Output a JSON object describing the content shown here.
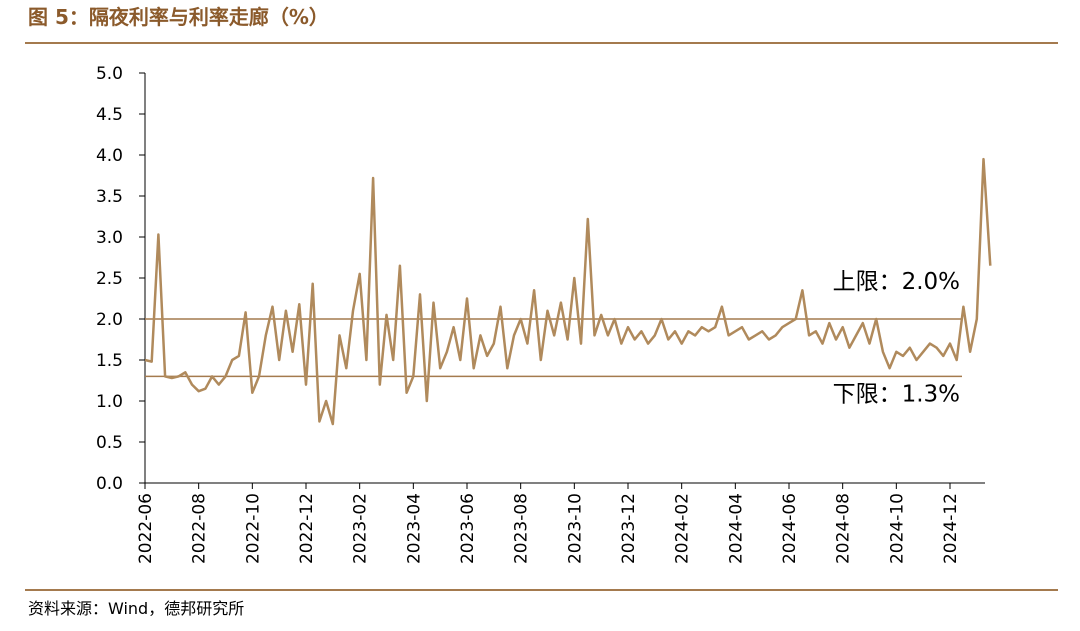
{
  "chart_data": {
    "type": "line",
    "title": "图 5：隔夜利率与利率走廊（%）",
    "source": "资料来源：Wind，德邦研究所",
    "color": "#b08a5c",
    "categories": [
      "2022-06",
      null,
      null,
      null,
      null,
      null,
      null,
      null,
      "2022-08",
      null,
      null,
      null,
      null,
      null,
      null,
      null,
      "2022-10",
      null,
      null,
      null,
      null,
      null,
      null,
      null,
      "2022-12",
      null,
      null,
      null,
      null,
      null,
      null,
      null,
      "2023-02",
      null,
      null,
      null,
      null,
      null,
      null,
      null,
      "2023-04",
      null,
      null,
      null,
      null,
      null,
      null,
      null,
      "2023-06",
      null,
      null,
      null,
      null,
      null,
      null,
      null,
      "2023-08",
      null,
      null,
      null,
      null,
      null,
      null,
      null,
      "2023-10",
      null,
      null,
      null,
      null,
      null,
      null,
      null,
      "2023-12",
      null,
      null,
      null,
      null,
      null,
      null,
      null,
      "2024-02",
      null,
      null,
      null,
      null,
      null,
      null,
      null,
      "2024-04",
      null,
      null,
      null,
      null,
      null,
      null,
      null,
      "2024-06",
      null,
      null,
      null,
      null,
      null,
      null,
      null,
      "2024-08",
      null,
      null,
      null,
      null,
      null,
      null,
      null,
      "2024-10",
      null,
      null,
      null,
      null,
      null,
      null,
      null,
      "2024-12",
      null,
      null,
      null,
      null,
      null,
      null
    ],
    "values": [
      1.5,
      1.48,
      3.03,
      1.3,
      1.28,
      1.3,
      1.35,
      1.2,
      1.12,
      1.15,
      1.3,
      1.2,
      1.3,
      1.5,
      1.55,
      2.08,
      1.1,
      1.3,
      1.8,
      2.15,
      1.5,
      2.1,
      1.6,
      2.18,
      1.2,
      2.43,
      0.75,
      1.0,
      0.72,
      1.8,
      1.4,
      2.1,
      2.55,
      1.5,
      3.72,
      1.2,
      2.05,
      1.5,
      2.65,
      1.1,
      1.3,
      2.3,
      1.0,
      2.2,
      1.4,
      1.6,
      1.9,
      1.5,
      2.25,
      1.4,
      1.8,
      1.55,
      1.7,
      2.15,
      1.4,
      1.8,
      2.0,
      1.7,
      2.35,
      1.5,
      2.1,
      1.8,
      2.2,
      1.75,
      2.5,
      1.7,
      3.22,
      1.8,
      2.05,
      1.8,
      2.0,
      1.7,
      1.9,
      1.75,
      1.85,
      1.7,
      1.8,
      2.0,
      1.75,
      1.85,
      1.7,
      1.85,
      1.8,
      1.9,
      1.85,
      1.9,
      2.15,
      1.8,
      1.85,
      1.9,
      1.75,
      1.8,
      1.85,
      1.75,
      1.8,
      1.9,
      1.95,
      2.0,
      2.35,
      1.8,
      1.85,
      1.7,
      1.95,
      1.75,
      1.9,
      1.65,
      1.8,
      1.95,
      1.7,
      2.0,
      1.6,
      1.4,
      1.6,
      1.55,
      1.65,
      1.5,
      1.6,
      1.7,
      1.65,
      1.55,
      1.7,
      1.5,
      2.15,
      1.6,
      2.0,
      3.95,
      2.65
    ],
    "ylim": [
      0,
      5
    ],
    "yticks": [
      {
        "value": 0,
        "label": "0.0"
      },
      0.5,
      {
        "value": 1,
        "label": "1.0"
      },
      1.5,
      {
        "value": 2,
        "label": "2.0"
      },
      2.5,
      {
        "value": 3,
        "label": "3.0"
      },
      3.5,
      {
        "value": 4,
        "label": "4.0"
      },
      4.5,
      {
        "value": 5,
        "label": "5.0"
      }
    ],
    "reference_lines": [
      {
        "value": 2.0,
        "label": "上限：2.0%"
      },
      {
        "value": 1.3,
        "label": "下限：1.3%"
      }
    ]
  }
}
